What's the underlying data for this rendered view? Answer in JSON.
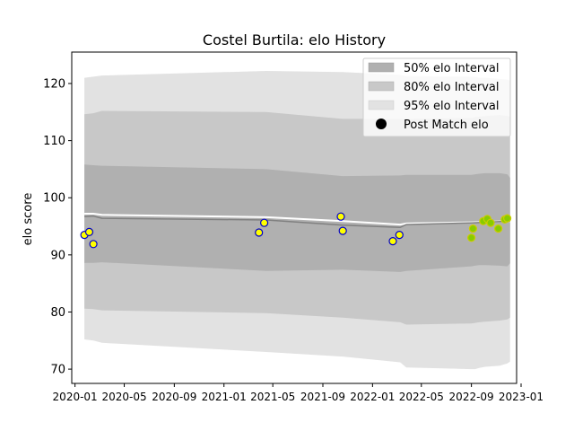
{
  "chart_data": {
    "type": "line",
    "title": "Costel Burtila: elo History",
    "xlabel": "",
    "ylabel": "elo score",
    "xlim": [
      "2019-12-24",
      "2022-12-21"
    ],
    "ylim": [
      67.5,
      125.5
    ],
    "x_ticks": [
      "2020-01",
      "2020-05",
      "2020-09",
      "2021-01",
      "2021-05",
      "2021-09",
      "2022-01",
      "2022-05",
      "2022-09",
      "2023-01"
    ],
    "y_ticks": [
      70,
      80,
      90,
      100,
      110,
      120
    ],
    "grid": false,
    "legend_position": "top-right",
    "legend": [
      {
        "label": "50% elo Interval",
        "color": "#b0b0b0"
      },
      {
        "label": "80% elo Interval",
        "color": "#c8c8c8"
      },
      {
        "label": "95% elo Interval",
        "color": "#e2e2e2"
      },
      {
        "label": "Post Match elo",
        "color": "#000000"
      }
    ],
    "mean_line_color": "#ffffff",
    "median_line_color": "#808080",
    "bands": {
      "x": [
        "2020-01-24",
        "2020-02-15",
        "2020-03-07",
        "2021-04-15",
        "2021-10-20",
        "2022-03-10",
        "2022-03-25",
        "2022-09-01",
        "2022-09-10",
        "2022-09-20",
        "2022-10-05",
        "2022-11-10",
        "2022-11-28",
        "2022-12-05"
      ],
      "b95": {
        "low": [
          75.2,
          75.0,
          74.6,
          73.0,
          72.2,
          71.2,
          70.3,
          70.0,
          70.0,
          70.2,
          70.4,
          70.6,
          71.0,
          71.3
        ],
        "high": [
          121.0,
          121.2,
          121.4,
          122.2,
          122.0,
          121.5,
          121.3,
          121.2,
          121.2,
          121.0,
          121.0,
          120.8,
          120.7,
          120.5
        ]
      },
      "b80": {
        "low": [
          80.6,
          80.5,
          80.3,
          79.8,
          79.0,
          78.2,
          77.8,
          78.0,
          78.1,
          78.2,
          78.3,
          78.5,
          78.7,
          79.0
        ],
        "high": [
          114.6,
          114.8,
          115.2,
          115.0,
          113.8,
          113.8,
          113.8,
          114.0,
          114.1,
          114.2,
          114.3,
          114.5,
          114.3,
          114.2
        ]
      },
      "b50": {
        "low": [
          88.6,
          88.6,
          88.7,
          87.2,
          87.4,
          87.0,
          87.2,
          88.0,
          88.1,
          88.2,
          88.2,
          88.1,
          88.0,
          88.5
        ],
        "high": [
          105.8,
          105.7,
          105.6,
          105.0,
          103.8,
          103.9,
          104.0,
          104.0,
          104.1,
          104.2,
          104.3,
          104.3,
          104.1,
          103.5
        ]
      }
    },
    "mean_line": {
      "x": [
        "2020-01-24",
        "2020-02-15",
        "2020-03-07",
        "2021-04-15",
        "2021-10-20",
        "2022-03-10",
        "2022-03-25",
        "2022-09-01",
        "2022-12-05"
      ],
      "y": [
        97.2,
        97.2,
        97.0,
        96.6,
        95.9,
        95.3,
        95.5,
        95.7,
        95.9
      ]
    },
    "median_line": {
      "x": [
        "2020-01-24",
        "2020-02-15",
        "2020-03-07",
        "2021-04-15",
        "2021-10-20",
        "2022-03-10",
        "2022-03-25",
        "2022-09-01",
        "2022-12-05"
      ],
      "y": [
        96.7,
        96.8,
        96.4,
        96.1,
        95.2,
        94.8,
        95.3,
        95.6,
        95.9
      ]
    },
    "series": [
      {
        "name": "Post Match elo",
        "color_fill_early": "#ffff00",
        "color_edge_early": "#0000cc",
        "color_fill_late": "#88cc00",
        "color_edge_late": "#cccc00",
        "points": [
          {
            "x": "2020-01-24",
            "y": 93.5,
            "style": "early"
          },
          {
            "x": "2020-02-05",
            "y": 94.0,
            "style": "early"
          },
          {
            "x": "2020-02-15",
            "y": 91.9,
            "style": "early"
          },
          {
            "x": "2021-03-28",
            "y": 93.9,
            "style": "early"
          },
          {
            "x": "2021-04-10",
            "y": 95.6,
            "style": "early"
          },
          {
            "x": "2021-10-15",
            "y": 96.7,
            "style": "early"
          },
          {
            "x": "2021-10-20",
            "y": 94.2,
            "style": "early"
          },
          {
            "x": "2022-02-20",
            "y": 92.4,
            "style": "early"
          },
          {
            "x": "2022-03-08",
            "y": 93.5,
            "style": "early"
          },
          {
            "x": "2022-09-01",
            "y": 93.0,
            "style": "late"
          },
          {
            "x": "2022-09-05",
            "y": 94.6,
            "style": "late"
          },
          {
            "x": "2022-09-30",
            "y": 95.9,
            "style": "late"
          },
          {
            "x": "2022-10-10",
            "y": 96.3,
            "style": "late"
          },
          {
            "x": "2022-10-18",
            "y": 95.6,
            "style": "late"
          },
          {
            "x": "2022-11-06",
            "y": 94.6,
            "style": "late"
          },
          {
            "x": "2022-11-22",
            "y": 96.2,
            "style": "late"
          },
          {
            "x": "2022-11-28",
            "y": 96.4,
            "style": "late"
          }
        ]
      }
    ]
  }
}
